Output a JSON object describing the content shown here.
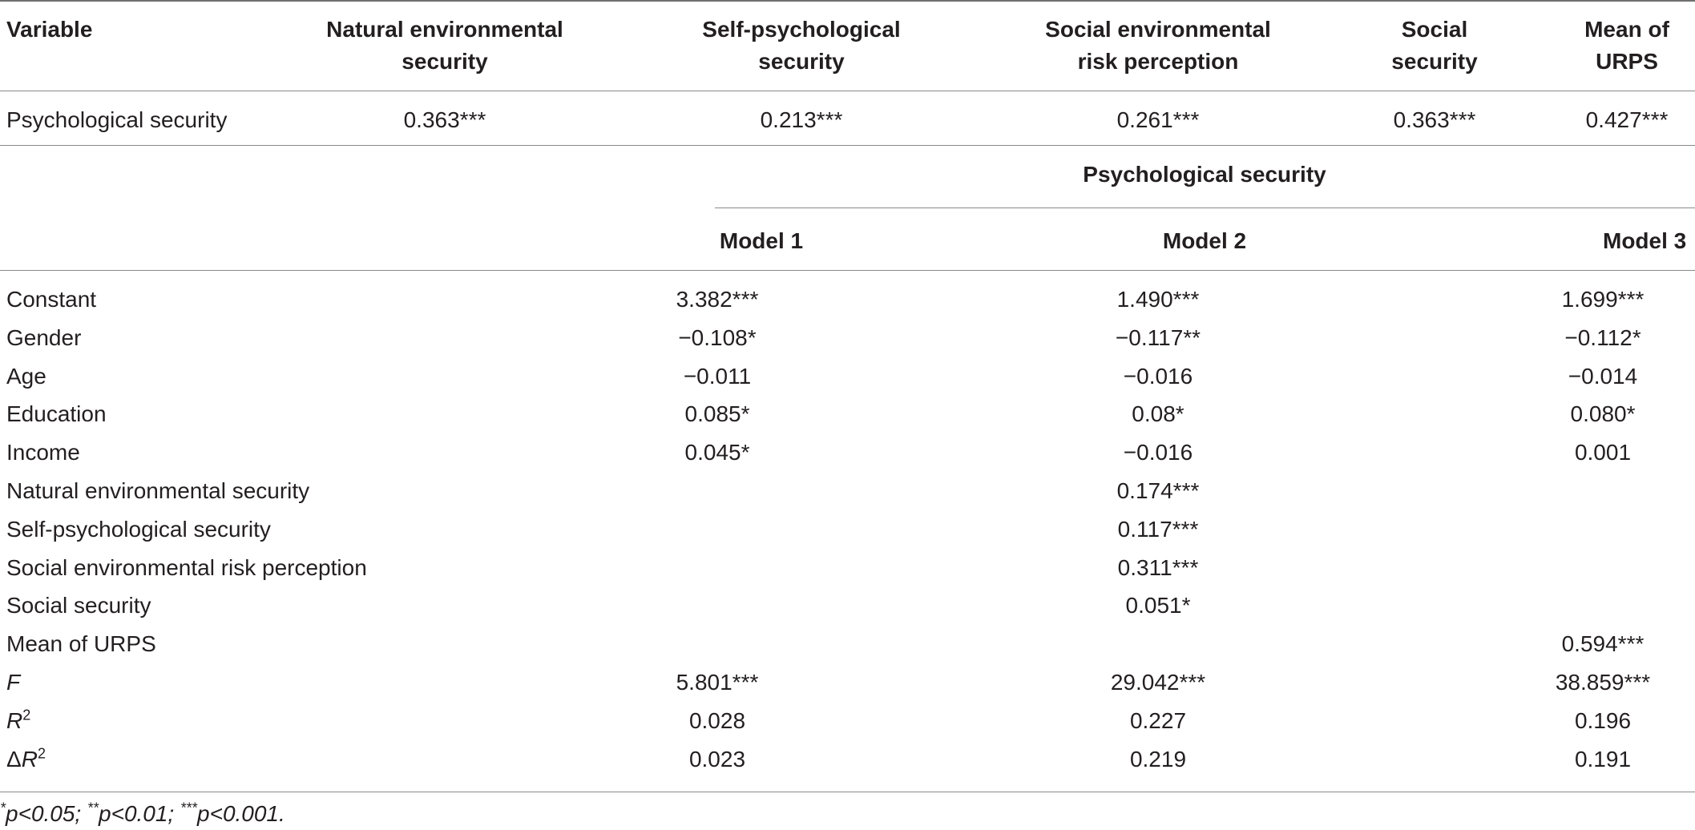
{
  "table1": {
    "headers": [
      {
        "lines": [
          "Variable"
        ]
      },
      {
        "lines": [
          "Natural environmental",
          "security"
        ]
      },
      {
        "lines": [
          "Self-psychological",
          "security"
        ]
      },
      {
        "lines": [
          "Social environmental",
          "risk perception"
        ]
      },
      {
        "lines": [
          "Social",
          "security"
        ]
      },
      {
        "lines": [
          "Mean of",
          "URPS"
        ]
      }
    ],
    "row": {
      "label": "Psychological security",
      "values": [
        "0.363***",
        "0.213***",
        "0.261***",
        "0.363***",
        "0.427***"
      ]
    }
  },
  "table2": {
    "group_header": "Psychological security",
    "models": [
      "Model 1",
      "Model 2",
      "Model 3"
    ],
    "rows": [
      {
        "label": "Constant",
        "m1": "3.382***",
        "m2": "1.490***",
        "m3": "1.699***"
      },
      {
        "label": "Gender",
        "m1": "−0.108*",
        "m2": "−0.117**",
        "m3": "−0.112*"
      },
      {
        "label": "Age",
        "m1": "−0.011",
        "m2": "−0.016",
        "m3": "−0.014"
      },
      {
        "label": "Education",
        "m1": "0.085*",
        "m2": "0.08*",
        "m3": "0.080*"
      },
      {
        "label": "Income",
        "m1": "0.045*",
        "m2": "−0.016",
        "m3": "0.001"
      },
      {
        "label": "Natural environmental security",
        "m1": "",
        "m2": "0.174***",
        "m3": ""
      },
      {
        "label": "Self-psychological security",
        "m1": "",
        "m2": "0.117***",
        "m3": ""
      },
      {
        "label": "Social environmental risk perception",
        "m1": "",
        "m2": "0.311***",
        "m3": ""
      },
      {
        "label": "Social security",
        "m1": "",
        "m2": "0.051*",
        "m3": ""
      },
      {
        "label": "Mean of URPS",
        "m1": "",
        "m2": "",
        "m3": "0.594***"
      },
      {
        "label": "F",
        "m1": "5.801***",
        "m2": "29.042***",
        "m3": "38.859***"
      },
      {
        "label": "R",
        "label_sup": "2",
        "m1": "0.028",
        "m2": "0.227",
        "m3": "0.196"
      },
      {
        "label": "ΔR",
        "label_sup": "2",
        "m1": "0.023",
        "m2": "0.219",
        "m3": "0.191"
      }
    ]
  },
  "footnote": {
    "parts": [
      {
        "sup": "*",
        "text": "p<0.05; "
      },
      {
        "sup": "**",
        "text": "p<0.01; "
      },
      {
        "sup": "***",
        "text": "p<0.001."
      }
    ]
  }
}
